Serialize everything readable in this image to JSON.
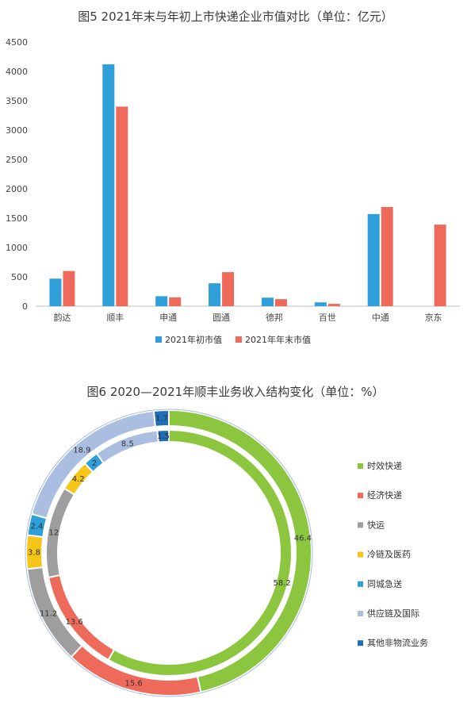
{
  "chart_data": [
    {
      "type": "bar",
      "title": "图5 2021年末与年初上市快递企业市值对比（单位：亿元）",
      "categories": [
        "韵达",
        "顺丰",
        "申通",
        "圆通",
        "德邦",
        "百世",
        "中通",
        "京东"
      ],
      "yticks": [
        "0",
        "500",
        "1000",
        "1500",
        "2000",
        "2500",
        "3000",
        "3500",
        "4000",
        "4500"
      ],
      "ylim": [
        0,
        4500
      ],
      "series": [
        {
          "name": "2021年初市值",
          "color": "#2E9FD8",
          "values": [
            470,
            4120,
            170,
            390,
            145,
            65,
            1570,
            null
          ]
        },
        {
          "name": "2021年年末市值",
          "color": "#EE6A5A",
          "values": [
            600,
            3400,
            150,
            580,
            120,
            40,
            1690,
            1390
          ]
        }
      ],
      "legend_position": "bottom"
    },
    {
      "type": "pie",
      "title": "图6 2020—2021年顺丰业务收入结构变化（单位：%）",
      "categories": [
        "时效快递",
        "经济快递",
        "快运",
        "冷链及医药",
        "同城急送",
        "供应链及国际",
        "其他非物流业务"
      ],
      "colors": [
        "#8CC63F",
        "#EE6A5A",
        "#9E9E9E",
        "#F5C518",
        "#2E9FD8",
        "#A9BEE0",
        "#1F6FB8"
      ],
      "series": [
        {
          "ring": "outer",
          "values": [
            46.4,
            15.6,
            11.2,
            3.8,
            2.4,
            18.9,
            1.7
          ]
        },
        {
          "ring": "inner",
          "values": [
            58.2,
            13.6,
            12,
            4.2,
            2,
            8.5,
            1.5
          ]
        }
      ],
      "legend_position": "right"
    }
  ]
}
